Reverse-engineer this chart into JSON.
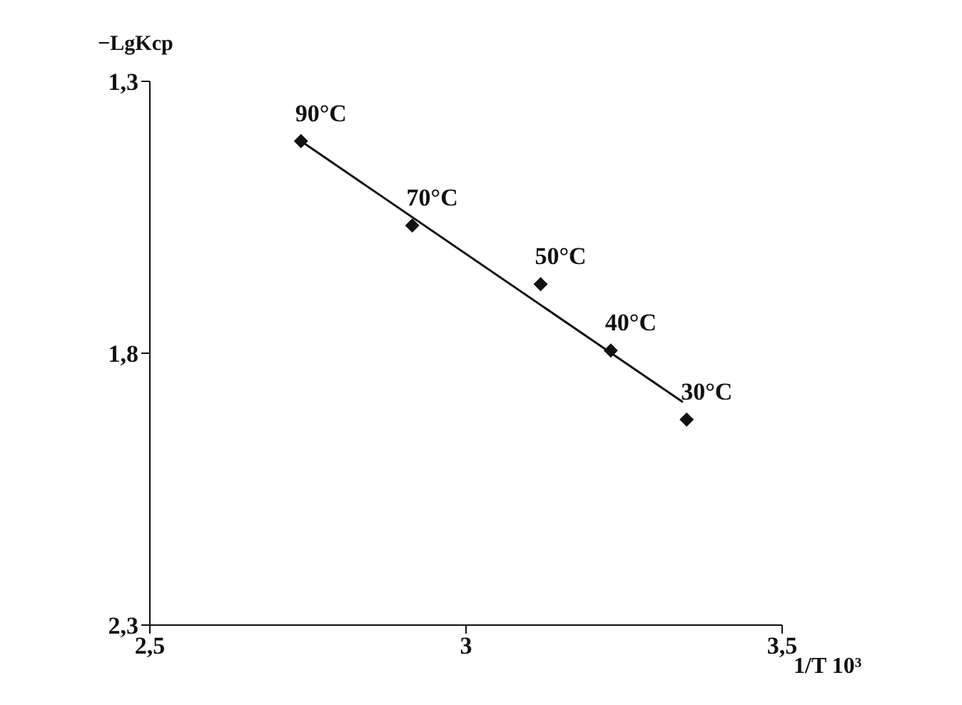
{
  "chart_data": {
    "type": "scatter",
    "xlabel": "1/T 10³",
    "ylabel": "−LgKср",
    "xlim": [
      2.5,
      3.5
    ],
    "xticks": [
      {
        "value": 2.5,
        "label": "2,5"
      },
      3,
      {
        "value": 3.5,
        "label": "3,5"
      }
    ],
    "ylim": [
      2.3,
      1.3
    ],
    "yticks": [
      {
        "value": 1.3,
        "label": "1,3"
      },
      {
        "value": 1.8,
        "label": "1,8"
      },
      {
        "value": 2.3,
        "label": "2,3"
      }
    ],
    "grid": false,
    "series": [
      {
        "marker": "diamond",
        "color": "#111111",
        "x": [
          2.739,
          2.915,
          3.118,
          3.229,
          3.349
        ],
        "values": [
          1.41,
          1.565,
          1.673,
          1.795,
          1.922
        ]
      },
      {
        "type": "line",
        "marker": "none",
        "color": "#111111",
        "x": [
          2.739,
          3.343
        ],
        "values": [
          1.41,
          1.89
        ]
      }
    ],
    "annotations": [
      {
        "text": "90°C",
        "x": 2.739,
        "y": 1.41
      },
      {
        "text": "70°C",
        "x": 2.915,
        "y": 1.565
      },
      {
        "text": "50°C",
        "x": 3.118,
        "y": 1.673
      },
      {
        "text": "40°C",
        "x": 3.229,
        "y": 1.795
      },
      {
        "text": "30°C",
        "x": 3.349,
        "y": 1.922
      }
    ]
  }
}
